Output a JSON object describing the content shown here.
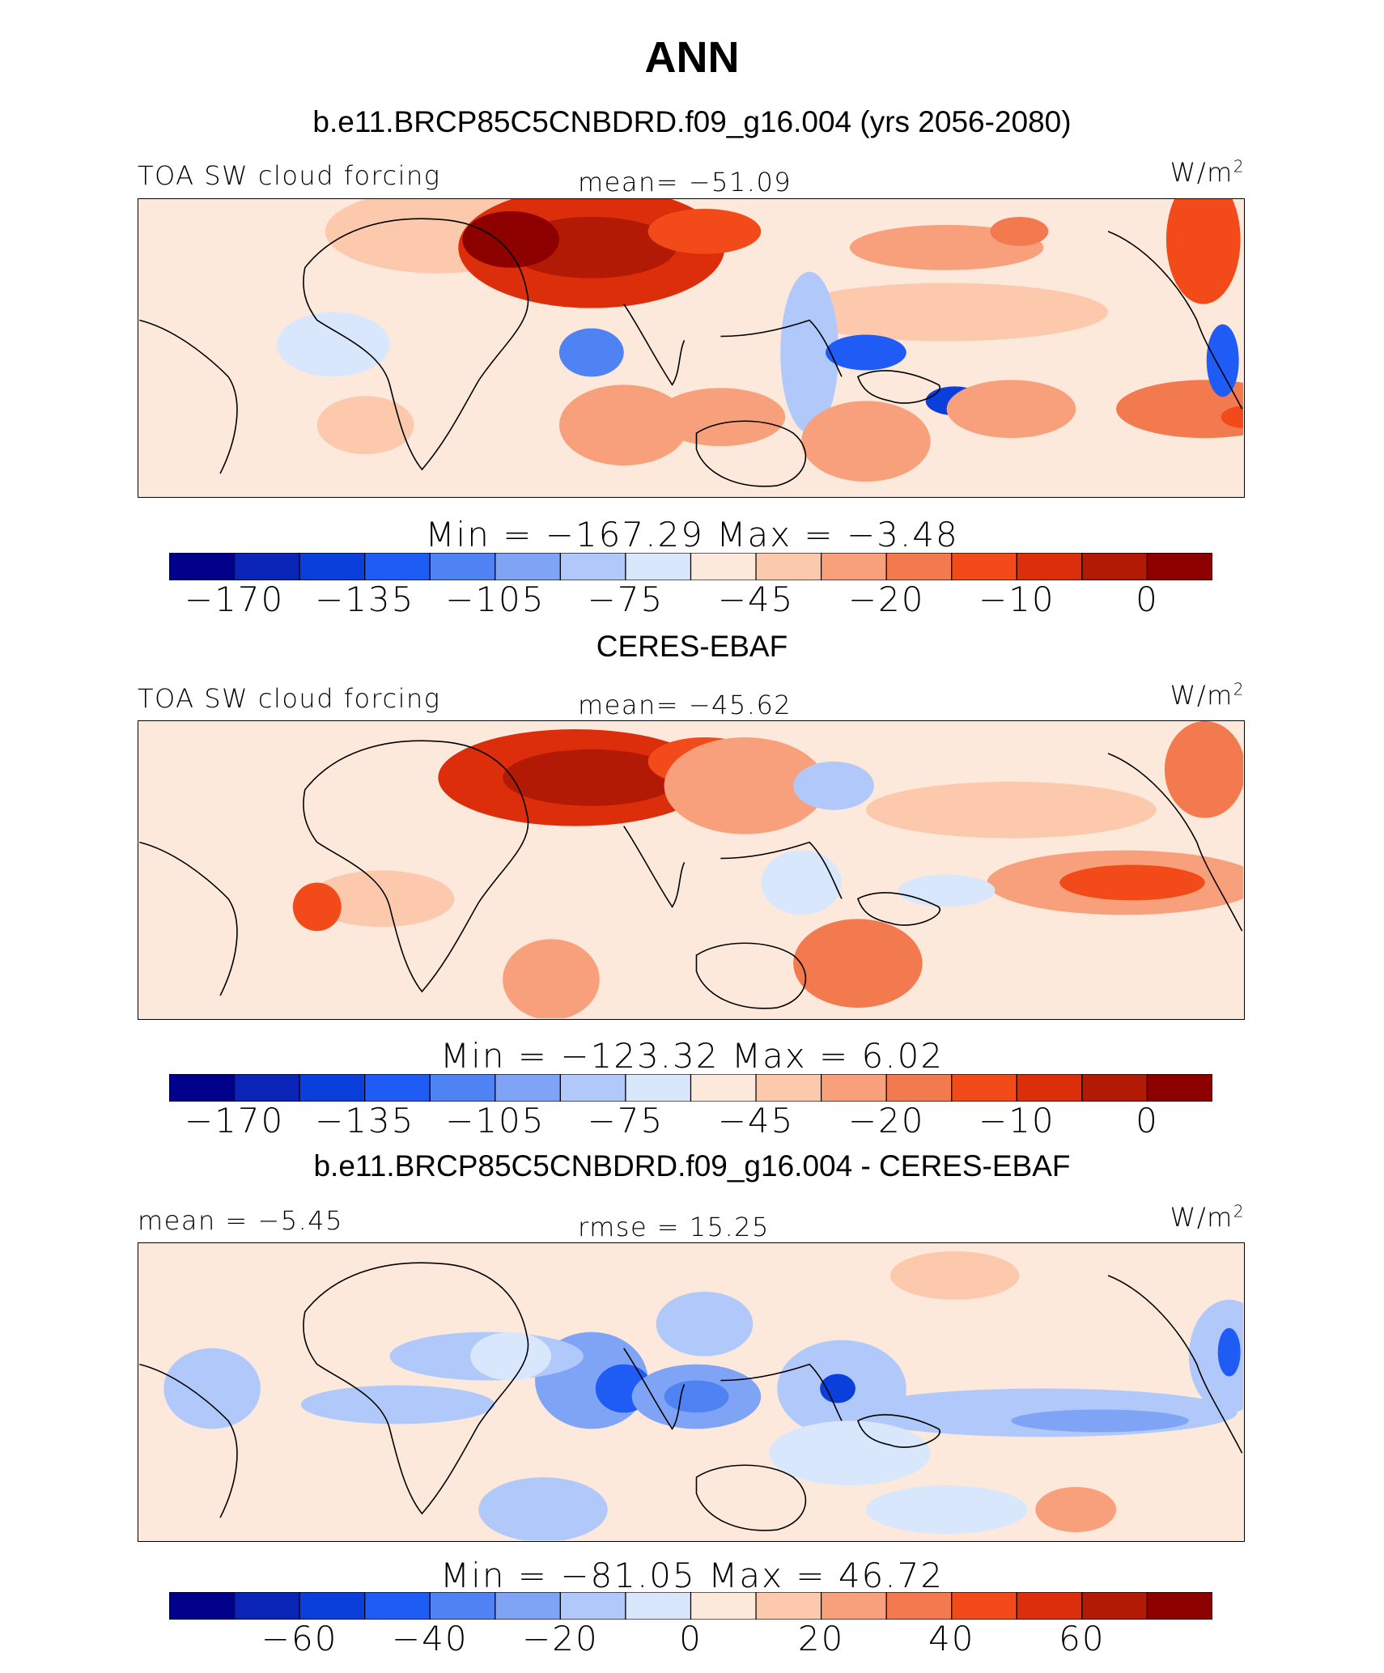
{
  "title": "ANN",
  "chart_data": [
    {
      "type": "heatmap",
      "title": "b.e11.BRCP85C5CNBDRD.f09_g16.004 (yrs 2056-2080)",
      "left_label": "TOA SW cloud forcing",
      "center_label": "mean=  −51.09",
      "units_label": "W/m",
      "units_sup": "2",
      "min_max": "Min  =  −167.29  Max  =    −3.48",
      "levels": [
        "−170",
        "−135",
        "−105",
        "−75",
        "−45",
        "−20",
        "−10",
        "0"
      ],
      "colorbar": [
        "#00008a",
        "#0a24b8",
        "#0b3fdc",
        "#1e5cf5",
        "#4f82f2",
        "#7fa4f5",
        "#b0c9fa",
        "#d9e7fd",
        "#fde9dc",
        "#fcc9ad",
        "#f8a07c",
        "#f3794f",
        "#f24a18",
        "#dc2e0a",
        "#b21a05",
        "#8c0000"
      ],
      "tick_positions": [
        1,
        3,
        5,
        7,
        9,
        11,
        13,
        15
      ],
      "mean": -51.09,
      "min": -167.29,
      "max": -3.48
    },
    {
      "type": "heatmap",
      "title": "CERES-EBAF",
      "left_label": "TOA SW cloud forcing",
      "center_label": "mean=  −45.62",
      "units_label": "W/m",
      "units_sup": "2",
      "min_max": "Min  =  −123.32  Max  =     6.02",
      "levels": [
        "−170",
        "−135",
        "−105",
        "−75",
        "−45",
        "−20",
        "−10",
        "0"
      ],
      "colorbar": [
        "#00008a",
        "#0a24b8",
        "#0b3fdc",
        "#1e5cf5",
        "#4f82f2",
        "#7fa4f5",
        "#b0c9fa",
        "#d9e7fd",
        "#fde9dc",
        "#fcc9ad",
        "#f8a07c",
        "#f3794f",
        "#f24a18",
        "#dc2e0a",
        "#b21a05",
        "#8c0000"
      ],
      "tick_positions": [
        1,
        3,
        5,
        7,
        9,
        11,
        13,
        15
      ],
      "mean": -45.62,
      "min": -123.32,
      "max": 6.02
    },
    {
      "type": "heatmap",
      "title": "b.e11.BRCP85C5CNBDRD.f09_g16.004 - CERES-EBAF",
      "left_label": "mean =   −5.45",
      "center_label": "rmse =   15.25",
      "units_label": "W/m",
      "units_sup": "2",
      "min_max": "Min  =  −81.05  Max  =   46.72",
      "levels": [
        "−60",
        "−40",
        "−20",
        "0",
        "20",
        "40",
        "60"
      ],
      "colorbar": [
        "#00008a",
        "#0a24b8",
        "#0b3fdc",
        "#1e5cf5",
        "#4f82f2",
        "#7fa4f5",
        "#b0c9fa",
        "#d9e7fd",
        "#fde9dc",
        "#fcc9ad",
        "#f8a07c",
        "#f3794f",
        "#f24a18",
        "#dc2e0a",
        "#b21a05",
        "#8c0000"
      ],
      "tick_positions": [
        2,
        4,
        6,
        8,
        10,
        12,
        14
      ],
      "mean": -5.45,
      "rmse": 15.25,
      "min": -81.05,
      "max": 46.72
    }
  ]
}
